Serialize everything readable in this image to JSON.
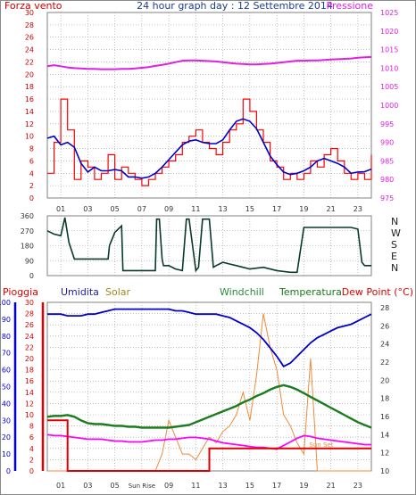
{
  "title": "24 hour graph day : 12 Settembre 2014",
  "colors": {
    "frame": "#808080",
    "grid": "#9a9a9a",
    "wind": "#ff0000",
    "wind_label": "#cc0000",
    "wind_avg": "#0000cc",
    "pressure": "#e020e0",
    "direction": "#0a3a2a",
    "rain": "#e00000",
    "humidity": "#0000cc",
    "solar": "#f08a3a",
    "solar_label": "#a08a20",
    "windchill": "#2a8a3a",
    "temperature": "#1a7a1a",
    "dew_point": "#ff00ff",
    "rain_label": "#e00000",
    "humidity_label": "#2020aa"
  },
  "top_chart": {
    "left_label": "Forza vento",
    "right_label": "Pressione",
    "left_ticks": [
      "0",
      "2",
      "4",
      "6",
      "8",
      "10",
      "12",
      "14",
      "16",
      "18",
      "20",
      "22",
      "24",
      "26",
      "28",
      "30"
    ],
    "right_ticks": [
      "975",
      "980",
      "985",
      "990",
      "995",
      "1000",
      "1005",
      "1010",
      "1015",
      "1020",
      "1025"
    ],
    "x_ticks": [
      "01",
      "03",
      "05",
      "07",
      "09",
      "11",
      "13",
      "15",
      "17",
      "19",
      "21",
      "23"
    ],
    "left_range": [
      0,
      30
    ],
    "right_range": [
      975,
      1025
    ]
  },
  "dir_chart": {
    "left_ticks": [
      "0",
      "90",
      "180",
      "270",
      "360"
    ],
    "right_ticks": [
      "N",
      "W",
      "S",
      "E",
      "N"
    ],
    "range": [
      0,
      360
    ]
  },
  "bottom_chart": {
    "legend": {
      "rain": "Pioggia",
      "humidity": "Umidita",
      "solar": "Solar",
      "windchill": "Windchill",
      "temperature": "Temperatura",
      "dew_point": "Dew Point (°C)"
    },
    "hum_ticks": [
      "0",
      "10",
      "20",
      "30",
      "40",
      "50",
      "60",
      "70",
      "80",
      "90",
      "100"
    ],
    "rain_ticks": [
      "0",
      "2",
      "4",
      "6",
      "8",
      "10",
      "12",
      "14",
      "16",
      "18",
      "20",
      "22",
      "24",
      "26",
      "28",
      "30"
    ],
    "temp_ticks": [
      "10",
      "12",
      "14",
      "16",
      "18",
      "20",
      "22",
      "24",
      "26",
      "28"
    ],
    "x_ticks": [
      "01",
      "03",
      "05",
      "Sun Rise",
      "09",
      "11",
      "13",
      "15",
      "17",
      "19",
      "21",
      "23"
    ],
    "sunset_label": "Sun Set",
    "hum_range": [
      0,
      100
    ],
    "rain_range": [
      0,
      30
    ],
    "temp_range": [
      10,
      28.6
    ]
  },
  "chart_data": [
    {
      "type": "line",
      "title": "24 hour graph day : 12 Settembre 2014",
      "xlabel": "",
      "ylabel": "Forza vento",
      "y2label": "Pressione",
      "x_hours": [
        0,
        0.5,
        1,
        1.5,
        2,
        2.5,
        3,
        3.5,
        4,
        4.5,
        5,
        5.5,
        6,
        6.5,
        7,
        7.5,
        8,
        8.5,
        9,
        9.5,
        10,
        10.5,
        11,
        11.5,
        12,
        12.5,
        13,
        13.5,
        14,
        14.5,
        15,
        15.5,
        16,
        16.5,
        17,
        17.5,
        18,
        18.5,
        19,
        19.5,
        20,
        20.5,
        21,
        21.5,
        22,
        22.5,
        23,
        23.5,
        24
      ],
      "ylim": [
        0,
        30
      ],
      "y2lim": [
        975,
        1025
      ],
      "series": [
        {
          "name": "Forza vento",
          "axis": "left",
          "values": [
            4,
            9,
            16,
            11,
            3,
            6,
            5,
            3,
            4,
            7,
            3,
            5,
            4,
            3,
            2,
            3,
            4,
            5,
            6,
            7,
            9,
            10,
            11,
            9,
            8,
            7,
            9,
            11,
            12,
            16,
            14,
            11,
            9,
            6,
            5,
            3,
            4,
            3,
            4,
            6,
            5,
            7,
            8,
            6,
            4,
            3,
            4,
            3,
            7
          ]
        },
        {
          "name": "Pressione",
          "axis": "right",
          "values": [
            1010.5,
            1010.8,
            1010.5,
            1010.2,
            1010,
            1009.9,
            1009.8,
            1009.8,
            1009.7,
            1009.7,
            1009.7,
            1009.8,
            1009.8,
            1009.9,
            1010.1,
            1010.3,
            1010.6,
            1010.9,
            1011.2,
            1011.6,
            1012,
            1012.1,
            1012.1,
            1012,
            1011.9,
            1011.8,
            1011.6,
            1011.4,
            1011.2,
            1011.1,
            1011,
            1011,
            1011.1,
            1011.2,
            1011.4,
            1011.6,
            1011.8,
            1012,
            1012,
            1012.1,
            1012.1,
            1012.2,
            1012.3,
            1012.4,
            1012.5,
            1012.6,
            1012.8,
            1012.9,
            1013
          ]
        }
      ]
    },
    {
      "type": "line",
      "title": "",
      "xlabel": "",
      "ylabel": "",
      "ylim": [
        0,
        360
      ],
      "x_hours": [
        0,
        0.5,
        1,
        1.3,
        1.6,
        2,
        3,
        4,
        4.5,
        4.6,
        5,
        5.5,
        5.6,
        6,
        7,
        8,
        8.1,
        8.3,
        8.5,
        8.6,
        9,
        9.5,
        10,
        10.3,
        10.5,
        11,
        11.2,
        11.5,
        12,
        12.3,
        12.5,
        13,
        13.5,
        14,
        14.5,
        15,
        16,
        17,
        18,
        18.5,
        19,
        19.5,
        20,
        20.5,
        21,
        21.5,
        22,
        22.5,
        23,
        23.3,
        23.5,
        24
      ],
      "series": [
        {
          "name": "",
          "values": [
            270,
            250,
            240,
            350,
            200,
            100,
            100,
            100,
            100,
            180,
            260,
            300,
            30,
            30,
            30,
            30,
            340,
            340,
            100,
            60,
            60,
            40,
            30,
            340,
            340,
            30,
            50,
            340,
            340,
            50,
            60,
            80,
            70,
            60,
            50,
            40,
            50,
            30,
            20,
            20,
            290,
            290,
            290,
            290,
            290,
            290,
            290,
            290,
            280,
            80,
            60,
            60
          ]
        }
      ]
    },
    {
      "type": "line",
      "title": "",
      "xlabel": "",
      "ylabel": "Umidita",
      "y2label": "Dew Point (°C)",
      "x_hours": [
        0,
        0.5,
        1,
        1.5,
        2,
        2.5,
        3,
        3.5,
        4,
        4.5,
        5,
        5.5,
        6,
        6.5,
        7,
        7.5,
        8,
        8.5,
        9,
        9.5,
        10,
        10.5,
        11,
        11.5,
        12,
        12.5,
        13,
        13.5,
        14,
        14.5,
        15,
        15.5,
        16,
        16.5,
        17,
        17.5,
        18,
        18.5,
        19,
        19.5,
        20,
        20.5,
        21,
        21.5,
        22,
        22.5,
        23,
        23.5,
        24
      ],
      "ylim": [
        0,
        100
      ],
      "y2lim": [
        10,
        28.6
      ],
      "series": [
        {
          "name": "Umidita",
          "axis": "humidity",
          "values": [
            93,
            93,
            93,
            92,
            92,
            92,
            93,
            93,
            94,
            95,
            96,
            96,
            96,
            96,
            96,
            96,
            96,
            96,
            96,
            95,
            95,
            94,
            93,
            93,
            93,
            93,
            92,
            91,
            89,
            87,
            85,
            82,
            78,
            73,
            68,
            62,
            64,
            68,
            72,
            76,
            79,
            81,
            83,
            85,
            86,
            87,
            89,
            91,
            93
          ]
        },
        {
          "name": "Pioggia",
          "axis": "rain",
          "values": [
            9,
            9,
            9,
            0,
            0,
            0,
            0,
            0,
            0,
            0,
            0,
            0,
            0,
            0,
            0,
            0,
            0,
            0,
            0,
            0,
            0,
            0,
            0,
            0,
            4,
            4,
            4,
            4,
            4,
            4,
            4,
            4,
            4,
            4,
            4,
            4,
            4,
            4,
            4,
            4,
            4,
            4,
            4,
            4,
            4,
            4,
            4,
            4,
            4
          ]
        },
        {
          "name": "Solar",
          "axis": "rain",
          "values": [
            0,
            0,
            0,
            0,
            0,
            0,
            0,
            0,
            0,
            0,
            0,
            0,
            0,
            0,
            0,
            0,
            0,
            3,
            9,
            6,
            3,
            3,
            2,
            4,
            6,
            5,
            7,
            8,
            10,
            14,
            9,
            17,
            28,
            22,
            18,
            10,
            8,
            5,
            3,
            20,
            0,
            0,
            0,
            0,
            0,
            0,
            0,
            0,
            0
          ]
        },
        {
          "name": "Temperatura",
          "axis": "temp",
          "values": [
            16,
            16.1,
            16.1,
            16.2,
            16,
            15.6,
            15.3,
            15.2,
            15.2,
            15.1,
            15,
            15,
            14.9,
            14.9,
            14.8,
            14.8,
            14.8,
            14.8,
            14.8,
            14.9,
            15,
            15.1,
            15.4,
            15.7,
            16,
            16.3,
            16.6,
            16.9,
            17.2,
            17.6,
            17.9,
            18.3,
            18.6,
            19,
            19.3,
            19.5,
            19.3,
            19,
            18.6,
            18.2,
            17.8,
            17.4,
            17,
            16.6,
            16.2,
            15.8,
            15.4,
            15.1,
            14.8
          ]
        },
        {
          "name": "Windchill",
          "axis": "temp",
          "values": [
            15.9,
            16,
            16,
            16.1,
            15.9,
            15.5,
            15.2,
            15.1,
            15.1,
            15,
            14.9,
            14.9,
            14.8,
            14.8,
            14.7,
            14.7,
            14.7,
            14.7,
            14.7,
            14.8,
            14.9,
            15,
            15.3,
            15.6,
            15.9,
            16.2,
            16.5,
            16.8,
            17.1,
            17.5,
            17.8,
            18.2,
            18.5,
            18.9,
            19.2,
            19.4,
            19.2,
            18.9,
            18.5,
            18.1,
            17.7,
            17.3,
            16.9,
            16.5,
            16.1,
            15.7,
            15.3,
            15,
            14.7
          ]
        },
        {
          "name": "Dew Point (°C)",
          "axis": "temp",
          "values": [
            14,
            13.9,
            13.9,
            13.8,
            13.7,
            13.6,
            13.5,
            13.5,
            13.5,
            13.4,
            13.3,
            13.3,
            13.2,
            13.2,
            13.2,
            13.3,
            13.4,
            13.4,
            13.5,
            13.5,
            13.6,
            13.7,
            13.7,
            13.6,
            13.5,
            13.3,
            13.1,
            13,
            12.9,
            12.8,
            12.7,
            12.6,
            12.6,
            12.5,
            12.4,
            12.8,
            13.2,
            13.6,
            13.9,
            13.8,
            13.6,
            13.5,
            13.4,
            13.3,
            13.2,
            13.1,
            13,
            12.9,
            12.9
          ]
        }
      ]
    }
  ]
}
